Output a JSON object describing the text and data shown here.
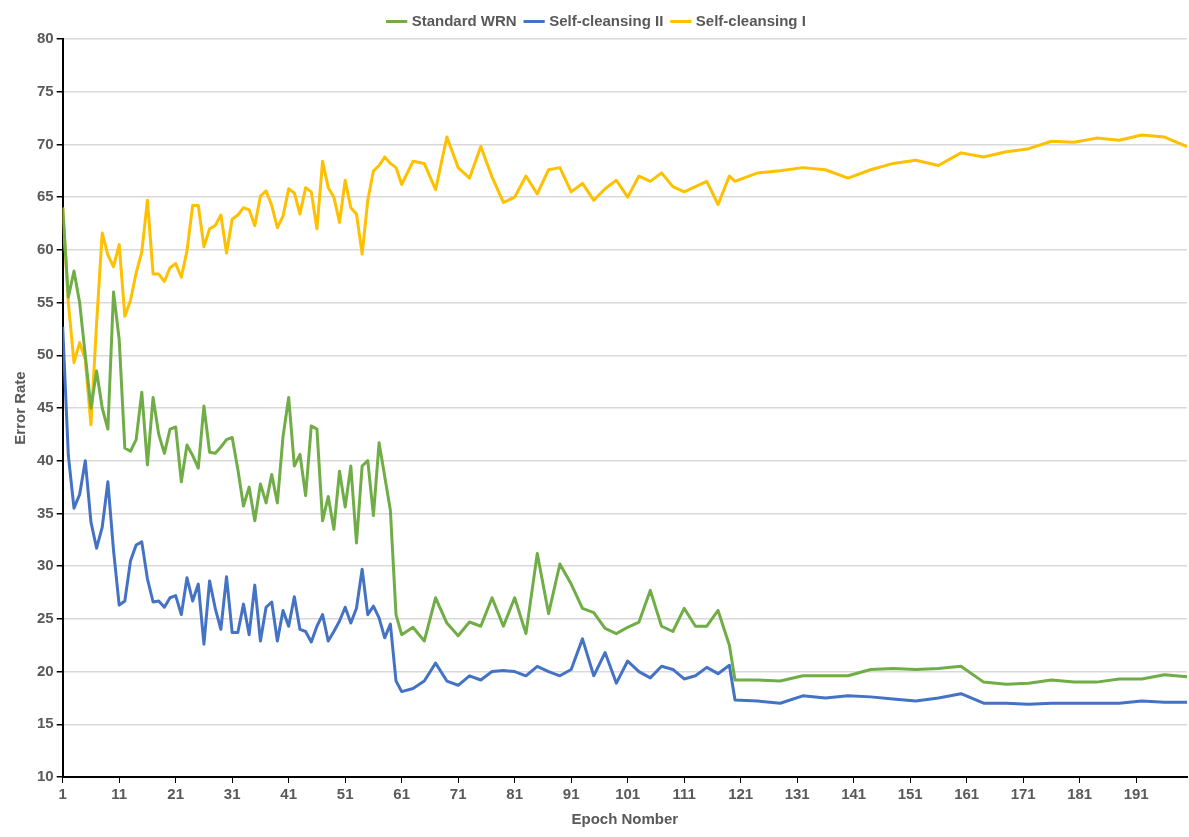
{
  "chart_data": {
    "type": "line",
    "xlabel": "Epoch Nomber",
    "ylabel": "Error Rate",
    "x": [
      1,
      2,
      3,
      4,
      5,
      6,
      7,
      8,
      9,
      10,
      11,
      12,
      13,
      14,
      15,
      16,
      17,
      18,
      19,
      20,
      21,
      22,
      23,
      24,
      25,
      26,
      27,
      28,
      29,
      30,
      31,
      32,
      33,
      34,
      35,
      36,
      37,
      38,
      39,
      40,
      41,
      42,
      43,
      44,
      45,
      46,
      47,
      48,
      49,
      50,
      51,
      52,
      53,
      54,
      55,
      56,
      57,
      58,
      59,
      60,
      61,
      63,
      65,
      67,
      69,
      71,
      73,
      75,
      77,
      79,
      81,
      83,
      85,
      87,
      89,
      91,
      93,
      95,
      97,
      99,
      101,
      103,
      105,
      107,
      109,
      111,
      113,
      115,
      117,
      119,
      120,
      124,
      128,
      132,
      136,
      140,
      144,
      148,
      152,
      156,
      160,
      164,
      168,
      172,
      176,
      180,
      184,
      188,
      192,
      196,
      200
    ],
    "series": [
      {
        "name": "Standard WRN",
        "color": "#70ad47",
        "values": [
          64,
          55.5,
          58,
          55,
          50,
          45,
          48.5,
          45,
          43,
          56,
          51.5,
          41.2,
          40.9,
          42,
          46.5,
          39.6,
          46,
          42.5,
          40.7,
          43,
          43.2,
          38,
          41.5,
          40.5,
          39.3,
          45.2,
          40.8,
          40.7,
          41.3,
          42,
          42.2,
          39.2,
          35.7,
          37.5,
          34.3,
          37.8,
          36,
          38.7,
          36,
          42.3,
          46,
          39.5,
          40.6,
          36.7,
          43.3,
          43,
          34.3,
          36.6,
          33.5,
          39,
          35.6,
          39.5,
          32.2,
          39.5,
          40,
          34.8,
          41.7,
          38.5,
          35.3,
          25.4,
          23.5,
          24.2,
          22.9,
          27,
          24.6,
          23.4,
          24.7,
          24.3,
          27,
          24.3,
          27,
          23.6,
          31.2,
          25.5,
          30.2,
          28.3,
          26,
          25.6,
          24.1,
          23.6,
          24.2,
          24.7,
          27.7,
          24.3,
          23.8,
          26,
          24.3,
          24.3,
          25.8,
          22.5,
          19.2,
          19.2,
          19.1,
          19.6,
          19.6,
          19.6,
          20.2,
          20.3,
          20.2,
          20.3,
          20.5,
          19,
          18.8,
          18.9,
          19.2,
          19,
          19,
          19.3,
          19.3,
          19.7,
          19.5
        ]
      },
      {
        "name": "Self-cleansing II",
        "color": "#4472c4",
        "values": [
          52.7,
          40.5,
          35.5,
          36.8,
          40,
          34.2,
          31.7,
          33.7,
          38,
          31.5,
          26.3,
          26.7,
          30.5,
          32,
          32.3,
          28.8,
          26.6,
          26.7,
          26.1,
          27,
          27.2,
          25.4,
          28.9,
          26.7,
          28.3,
          22.6,
          28.6,
          26,
          24,
          29,
          23.7,
          23.7,
          26.4,
          23.5,
          28.2,
          22.9,
          26.1,
          26.6,
          22.9,
          25.8,
          24.3,
          27.1,
          24,
          23.8,
          22.8,
          24.3,
          25.4,
          22.9,
          23.8,
          24.8,
          26.1,
          24.6,
          26,
          29.7,
          25.4,
          26.2,
          25.1,
          23.2,
          24.5,
          19.1,
          18.1,
          18.4,
          19.1,
          20.8,
          19.1,
          18.7,
          19.6,
          19.2,
          20,
          20.1,
          20,
          19.6,
          20.5,
          20,
          19.6,
          20.2,
          23.1,
          19.6,
          21.8,
          18.9,
          21,
          20,
          19.4,
          20.5,
          20.2,
          19.3,
          19.6,
          20.4,
          19.8,
          20.6,
          17.3,
          17.2,
          17,
          17.7,
          17.5,
          17.7,
          17.6,
          17.4,
          17.2,
          17.5,
          17.9,
          17,
          17,
          16.9,
          17,
          17,
          17,
          17,
          17.2,
          17.1,
          17.1
        ]
      },
      {
        "name": "Self-cleansing I",
        "color": "#ffc000",
        "values": [
          64,
          55,
          49.3,
          51.2,
          49.6,
          43.4,
          53,
          61.6,
          59.5,
          58.4,
          60.5,
          53.7,
          55.2,
          57.8,
          59.8,
          64.7,
          57.7,
          57.7,
          57,
          58.3,
          58.7,
          57.4,
          59.9,
          64.2,
          64.2,
          60.3,
          62,
          62.3,
          63.3,
          59.7,
          62.9,
          63.3,
          64,
          63.8,
          62.3,
          65.1,
          65.6,
          64.2,
          62.1,
          63.2,
          65.8,
          65.4,
          63.4,
          65.9,
          65.5,
          62,
          68.4,
          65.9,
          65,
          62.6,
          66.6,
          64,
          63.4,
          59.6,
          64.7,
          67.5,
          68,
          68.8,
          68.2,
          67.8,
          66.2,
          68.4,
          68.2,
          65.7,
          70.7,
          67.8,
          66.8,
          69.8,
          66.9,
          64.5,
          65,
          67,
          65.3,
          67.6,
          67.8,
          65.5,
          66.3,
          64.7,
          65.8,
          66.6,
          65,
          67,
          66.5,
          67.3,
          66,
          65.5,
          66,
          66.5,
          64.3,
          67,
          66.5,
          67.3,
          67.5,
          67.8,
          67.6,
          66.8,
          67.6,
          68.2,
          68.5,
          68,
          69.2,
          68.8,
          69.3,
          69.6,
          70.3,
          70.2,
          70.6,
          70.4,
          70.9,
          70.7,
          69.8
        ]
      }
    ],
    "xlim": [
      1,
      200
    ],
    "xticks": [
      1,
      11,
      21,
      31,
      41,
      51,
      61,
      71,
      81,
      91,
      101,
      111,
      121,
      131,
      141,
      151,
      161,
      171,
      181,
      191
    ],
    "ylim": [
      10,
      80
    ],
    "yticks": [
      10,
      15,
      20,
      25,
      30,
      35,
      40,
      45,
      50,
      55,
      60,
      65,
      70,
      75,
      80
    ],
    "grid": "y",
    "legend": "top",
    "marker": "none",
    "line_style": "solid"
  }
}
